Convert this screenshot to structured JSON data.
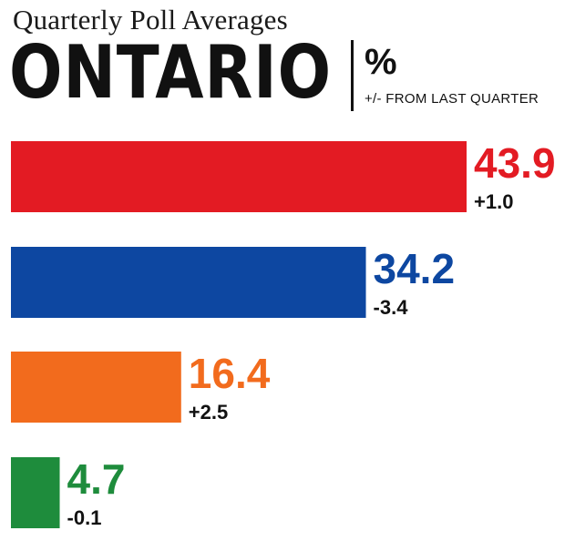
{
  "header": {
    "subtitle": "Quarterly Poll Averages",
    "region": "ONTARIO",
    "unit": "%",
    "unit_note": "+/- FROM LAST QUARTER"
  },
  "chart_data": {
    "type": "bar",
    "orientation": "horizontal",
    "title": "ONTARIO",
    "subtitle": "Quarterly Poll Averages",
    "unit": "%",
    "xlim": [
      0,
      43.9
    ],
    "grid": false,
    "legend": "none",
    "bars": [
      {
        "value": 43.9,
        "value_label": "43.9",
        "change_label": "+1.0",
        "color": "#e31b23"
      },
      {
        "value": 34.2,
        "value_label": "34.2",
        "change_label": "-3.4",
        "color": "#0d47a1"
      },
      {
        "value": 16.4,
        "value_label": "16.4",
        "change_label": "+2.5",
        "color": "#f26b1d"
      },
      {
        "value": 4.7,
        "value_label": "4.7",
        "change_label": "-0.1",
        "color": "#1e8c3c"
      }
    ]
  }
}
